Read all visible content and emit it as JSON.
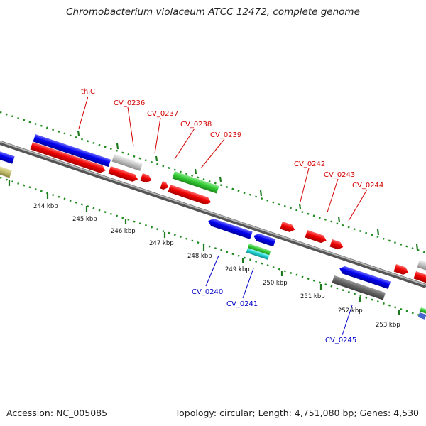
{
  "title": "Chromobacterium violaceum ATCC 12472, complete genome",
  "footer": {
    "accession": "Accession: NC_005085",
    "topology": "Topology: circular; Length: 4,751,080 bp; Genes: 4,530"
  },
  "colors": {
    "backbone": "#8a8a8a",
    "dots": "#1e8c1e",
    "tick": "#1e7a1e",
    "top_label": "#d40000",
    "bottom_label": "#0000c8"
  },
  "ticks": [
    "244 kbp",
    "245 kbp",
    "246 kbp",
    "247 kbp",
    "248 kbp",
    "249 kbp",
    "250 kbp",
    "251 kbp",
    "252 kbp",
    "253 kbp"
  ],
  "gene_labels_top": [
    "thiC",
    "CV_0236",
    "CV_0237",
    "CV_0238",
    "CV_0239",
    "CV_0242",
    "CV_0243",
    "CV_0244"
  ],
  "gene_labels_bottom": [
    "CV_0240",
    "CV_0241",
    "CV_0245"
  ]
}
